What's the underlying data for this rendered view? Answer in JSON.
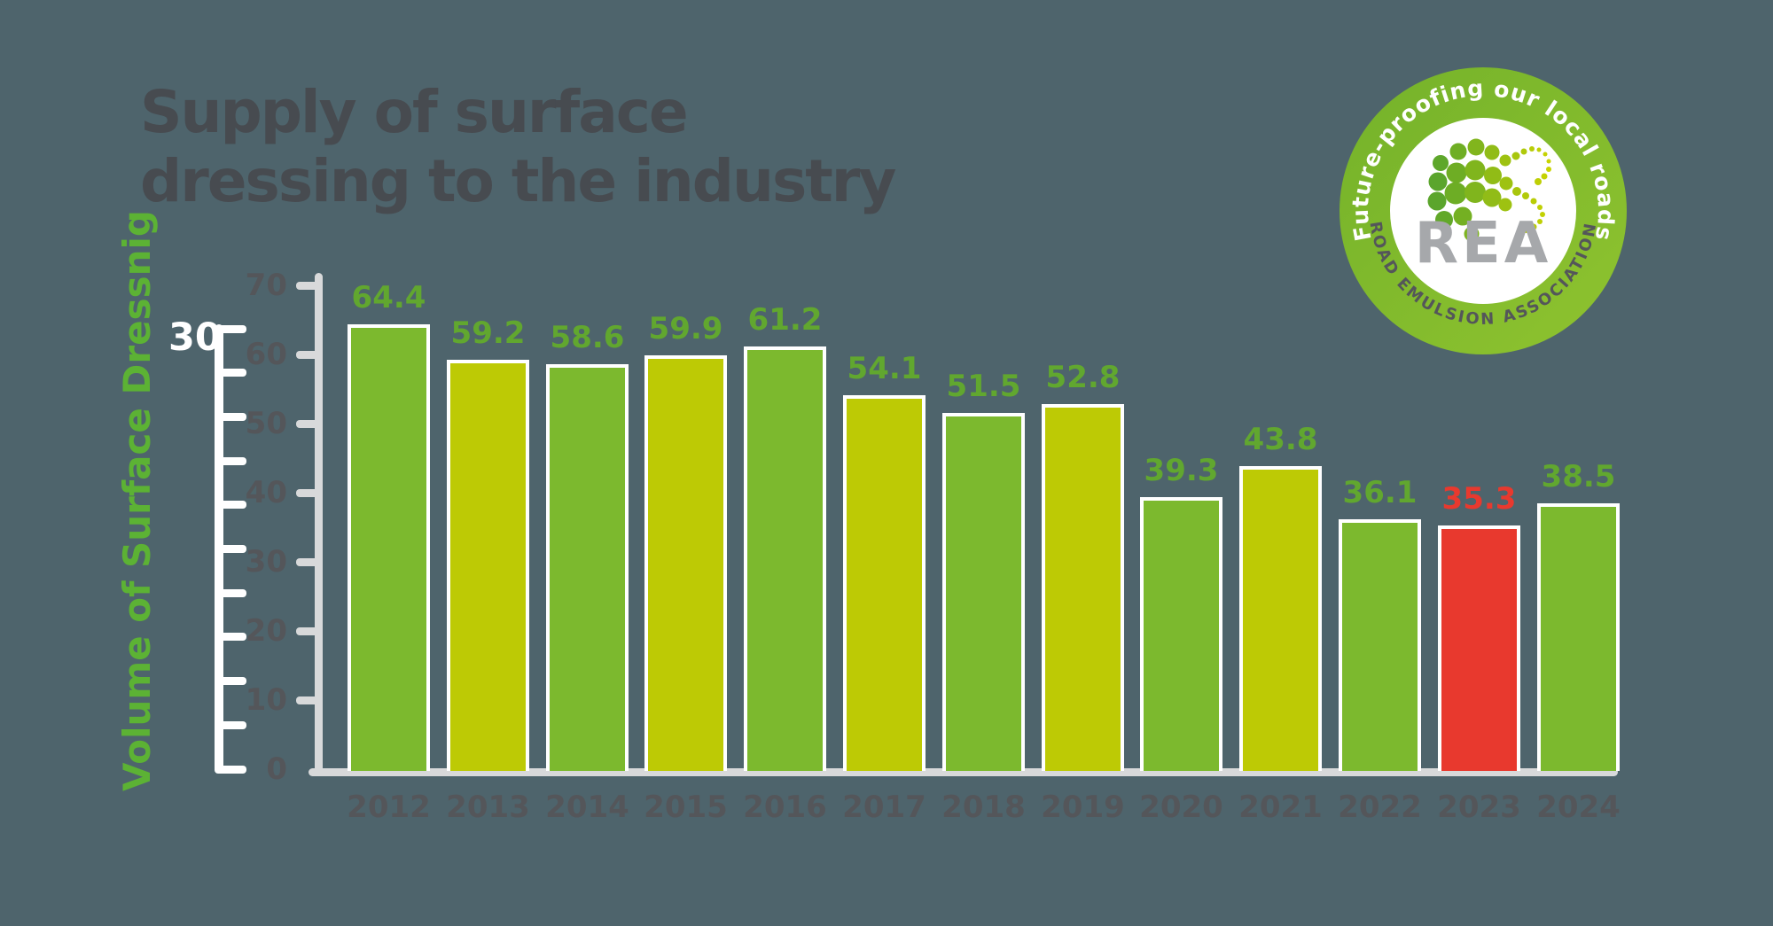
{
  "title": {
    "line1": "Supply of surface",
    "line2": "dressing to the industry"
  },
  "y_axis": {
    "label": "Volume of Surface Dressnig",
    "tick_values": [
      70,
      60,
      50,
      40,
      30,
      20,
      10,
      0
    ],
    "stray_label": "30"
  },
  "chart_data": {
    "type": "bar",
    "title": "Supply of surface dressing to the industry",
    "xlabel": "",
    "ylabel": "Volume of Surface Dressnig",
    "categories": [
      "2012",
      "2013",
      "2014",
      "2015",
      "2016",
      "2017",
      "2018",
      "2019",
      "2020",
      "2021",
      "2022",
      "2023",
      "2024"
    ],
    "values": [
      64.4,
      59.2,
      58.6,
      59.9,
      61.2,
      54.1,
      51.5,
      52.8,
      39.3,
      43.8,
      36.1,
      35.3,
      38.5
    ],
    "ylim": [
      0,
      70
    ],
    "grid": false,
    "legend": "none",
    "highlight_category": "2023",
    "bar_color_even": "#7cb92e",
    "bar_color_odd": "#bdca05",
    "highlight_color": "#e8392e",
    "value_label_color": "#61a72f",
    "highlight_label_color": "#e8392e"
  },
  "logo": {
    "arc_top": "Future-proofing our local roads",
    "arc_bottom": "ROAD EMULSION ASSOCIATION",
    "center": "REA"
  },
  "colors": {
    "background": "#4e646c",
    "axis_gray": "#d8d9da",
    "axis_text": "#54565a",
    "title_text": "#474b50",
    "ylabel_green": "#5cb234",
    "ruler_white": "#ffffff",
    "logo_ring_green": "#7cb72d",
    "rea_gray": "#a6a8ab"
  }
}
